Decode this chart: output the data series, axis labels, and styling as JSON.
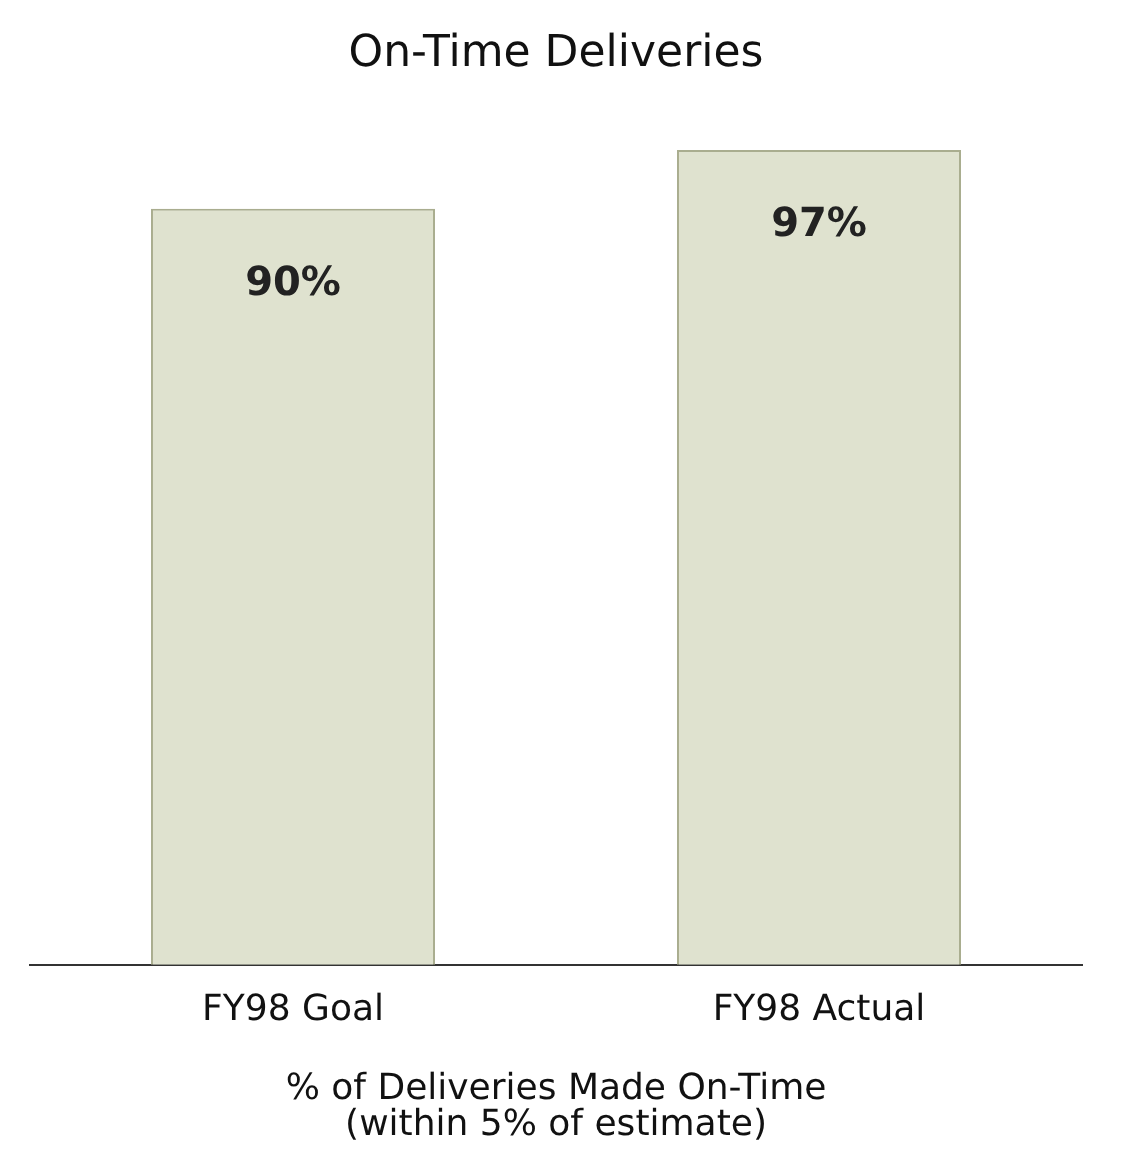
{
  "chart_data": {
    "type": "bar",
    "title": "On-Time Deliveries",
    "xlabel": "% of Deliveries Made On-Time\n(within 5% of estimate)",
    "categories": [
      "FY98 Goal",
      "FY98 Actual"
    ],
    "values": [
      90,
      97
    ],
    "value_labels": [
      "90%",
      "97%"
    ],
    "color": "#dfe2cf",
    "grid": false
  }
}
